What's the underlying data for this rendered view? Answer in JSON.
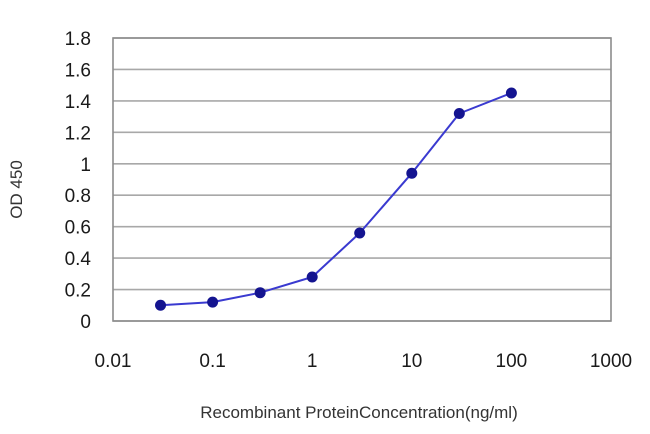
{
  "chart_data": {
    "type": "line",
    "title": "",
    "xlabel": "Recombinant ProteinConcentration(ng/ml)",
    "ylabel": "OD 450",
    "x_scale": "log",
    "xlim": [
      0.01,
      1000
    ],
    "ylim": [
      0,
      1.8
    ],
    "x_ticks": [
      0.01,
      0.1,
      1,
      10,
      100,
      1000
    ],
    "x_tick_labels": [
      "0.01",
      "0.1",
      "1",
      "10",
      "100",
      "1000"
    ],
    "y_ticks": [
      0,
      0.2,
      0.4,
      0.6,
      0.8,
      1,
      1.2,
      1.4,
      1.6,
      1.8
    ],
    "y_tick_labels": [
      "0",
      "0.2",
      "0.4",
      "0.6",
      "0.8",
      "1",
      "1.2",
      "1.4",
      "1.6",
      "1.8"
    ],
    "grid": "horizontal",
    "legend": "none",
    "series": [
      {
        "x": [
          0.03,
          0.1,
          0.3,
          1,
          3,
          10,
          30,
          100
        ],
        "y": [
          0.1,
          0.12,
          0.18,
          0.28,
          0.56,
          0.94,
          1.32,
          1.45
        ]
      }
    ],
    "colors": {
      "line": "#3a3ad0",
      "marker": "#141490",
      "grid": "#a8a8a8",
      "frame": "#8c8c8c"
    }
  }
}
